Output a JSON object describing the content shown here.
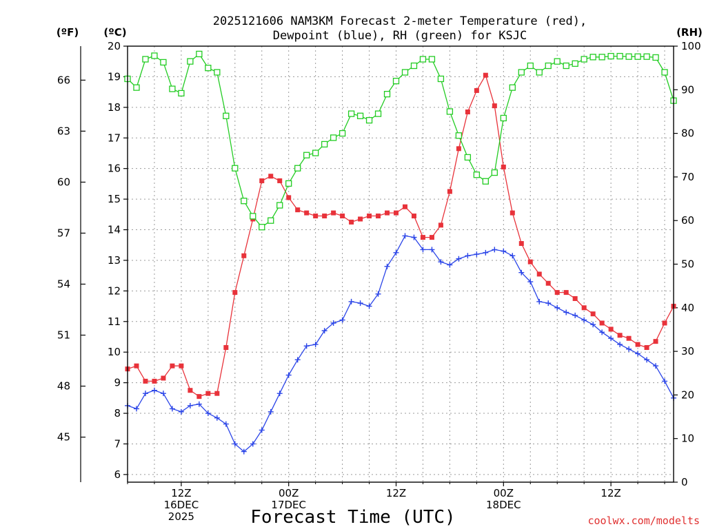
{
  "chart_data": {
    "type": "line",
    "title_lines": [
      "2025121606 NAM3KM Forecast 2-meter Temperature (red),",
      "Dewpoint (blue), RH (green) for KSJC"
    ],
    "left_outer_unit": "(ºF)",
    "left_unit": "(ºC)",
    "right_unit": "(RH)",
    "xlabel": "Forecast Time (UTC)",
    "credit": "coolwx.com/modelts",
    "x_range_hours": [
      0,
      61
    ],
    "celsius_range": [
      5.75,
      20
    ],
    "celsius_ticks": [
      6,
      7,
      8,
      9,
      10,
      11,
      12,
      13,
      14,
      15,
      16,
      17,
      18,
      19,
      20
    ],
    "fahrenheit_ticks": [
      45,
      48,
      51,
      54,
      57,
      60,
      63,
      66
    ],
    "rh_range": [
      0,
      100
    ],
    "rh_ticks": [
      0,
      10,
      20,
      30,
      40,
      50,
      60,
      70,
      80,
      90,
      100
    ],
    "x_ticks": [
      {
        "hour": 6,
        "lines": [
          "12Z",
          "16DEC",
          "2025"
        ]
      },
      {
        "hour": 18,
        "lines": [
          "00Z",
          "17DEC"
        ]
      },
      {
        "hour": 30,
        "lines": [
          "12Z"
        ]
      },
      {
        "hour": 42,
        "lines": [
          "00Z",
          "18DEC"
        ]
      },
      {
        "hour": 54,
        "lines": [
          "12Z"
        ]
      }
    ],
    "series": [
      {
        "name": "2-meter Temperature",
        "unit": "C",
        "color": "#e8323a",
        "marker": "filled-square",
        "x": [
          0,
          1,
          2,
          3,
          4,
          5,
          6,
          7,
          8,
          9,
          10,
          11,
          12,
          13,
          14,
          15,
          16,
          17,
          18,
          19,
          20,
          21,
          22,
          23,
          24,
          25,
          26,
          27,
          28,
          29,
          30,
          31,
          32,
          33,
          34,
          35,
          36,
          37,
          38,
          39,
          40,
          41,
          42,
          43,
          44,
          45,
          46,
          47,
          48,
          49,
          50,
          51,
          52,
          53,
          54,
          55,
          56,
          57,
          58,
          59,
          60,
          61
        ],
        "values": [
          9.45,
          9.55,
          9.05,
          9.05,
          9.15,
          9.55,
          9.55,
          8.75,
          8.55,
          8.65,
          8.65,
          10.15,
          11.95,
          13.15,
          14.35,
          15.6,
          15.75,
          15.6,
          15.05,
          14.65,
          14.55,
          14.45,
          14.45,
          14.55,
          14.45,
          14.25,
          14.35,
          14.45,
          14.45,
          14.55,
          14.55,
          14.75,
          14.45,
          13.75,
          13.75,
          14.15,
          15.25,
          16.65,
          17.85,
          18.55,
          19.05,
          18.05,
          16.05,
          14.55,
          13.55,
          12.95,
          12.55,
          12.25,
          11.95,
          11.95,
          11.75,
          11.45,
          11.25,
          10.95,
          10.75,
          10.55,
          10.45,
          10.25,
          10.15,
          10.35,
          10.95,
          11.5
        ]
      },
      {
        "name": "Dewpoint",
        "unit": "C",
        "color": "#2a44e8",
        "marker": "plus",
        "x": [
          0,
          1,
          2,
          3,
          4,
          5,
          6,
          7,
          8,
          9,
          10,
          11,
          12,
          13,
          14,
          15,
          16,
          17,
          18,
          19,
          20,
          21,
          22,
          23,
          24,
          25,
          26,
          27,
          28,
          29,
          30,
          31,
          32,
          33,
          34,
          35,
          36,
          37,
          38,
          39,
          40,
          41,
          42,
          43,
          44,
          45,
          46,
          47,
          48,
          49,
          50,
          51,
          52,
          53,
          54,
          55,
          56,
          57,
          58,
          59,
          60,
          61
        ],
        "values": [
          8.25,
          8.15,
          8.65,
          8.75,
          8.65,
          8.15,
          8.05,
          8.25,
          8.3,
          8.0,
          7.85,
          7.65,
          7.0,
          6.75,
          7.0,
          7.45,
          8.05,
          8.65,
          9.25,
          9.75,
          10.2,
          10.25,
          10.7,
          10.95,
          11.05,
          11.65,
          11.6,
          11.5,
          11.9,
          12.8,
          13.25,
          13.8,
          13.75,
          13.35,
          13.35,
          12.95,
          12.85,
          13.05,
          13.15,
          13.2,
          13.25,
          13.35,
          13.3,
          13.15,
          12.6,
          12.3,
          11.65,
          11.6,
          11.45,
          11.3,
          11.2,
          11.05,
          10.9,
          10.65,
          10.45,
          10.25,
          10.1,
          9.95,
          9.75,
          9.55,
          9.05,
          8.5
        ]
      },
      {
        "name": "RH",
        "unit": "%",
        "color": "#22cc22",
        "marker": "open-square",
        "x": [
          0,
          1,
          2,
          3,
          4,
          5,
          6,
          7,
          8,
          9,
          10,
          11,
          12,
          13,
          14,
          15,
          16,
          17,
          18,
          19,
          20,
          21,
          22,
          23,
          24,
          25,
          26,
          27,
          28,
          29,
          30,
          31,
          32,
          33,
          34,
          35,
          36,
          37,
          38,
          39,
          40,
          41,
          42,
          43,
          44,
          45,
          46,
          47,
          48,
          49,
          50,
          51,
          52,
          53,
          54,
          55,
          56,
          57,
          58,
          59,
          60,
          61
        ],
        "values": [
          92.5,
          90.5,
          97.0,
          97.8,
          96.3,
          90.2,
          89.2,
          96.5,
          98.2,
          95.0,
          94.0,
          84.0,
          72.0,
          64.5,
          61.0,
          58.5,
          60.0,
          63.5,
          68.5,
          72.0,
          75.0,
          75.5,
          77.5,
          79.0,
          80.0,
          84.5,
          84.0,
          83.0,
          84.5,
          89.0,
          92.0,
          94.0,
          95.5,
          97.0,
          97.0,
          92.5,
          85.0,
          79.5,
          74.5,
          70.5,
          69.0,
          71.0,
          83.5,
          90.5,
          94.0,
          95.5,
          94.0,
          95.5,
          96.5,
          95.5,
          96.0,
          97.0,
          97.5,
          97.5,
          97.7,
          97.7,
          97.6,
          97.6,
          97.6,
          97.4,
          94.0,
          87.5
        ]
      }
    ]
  }
}
